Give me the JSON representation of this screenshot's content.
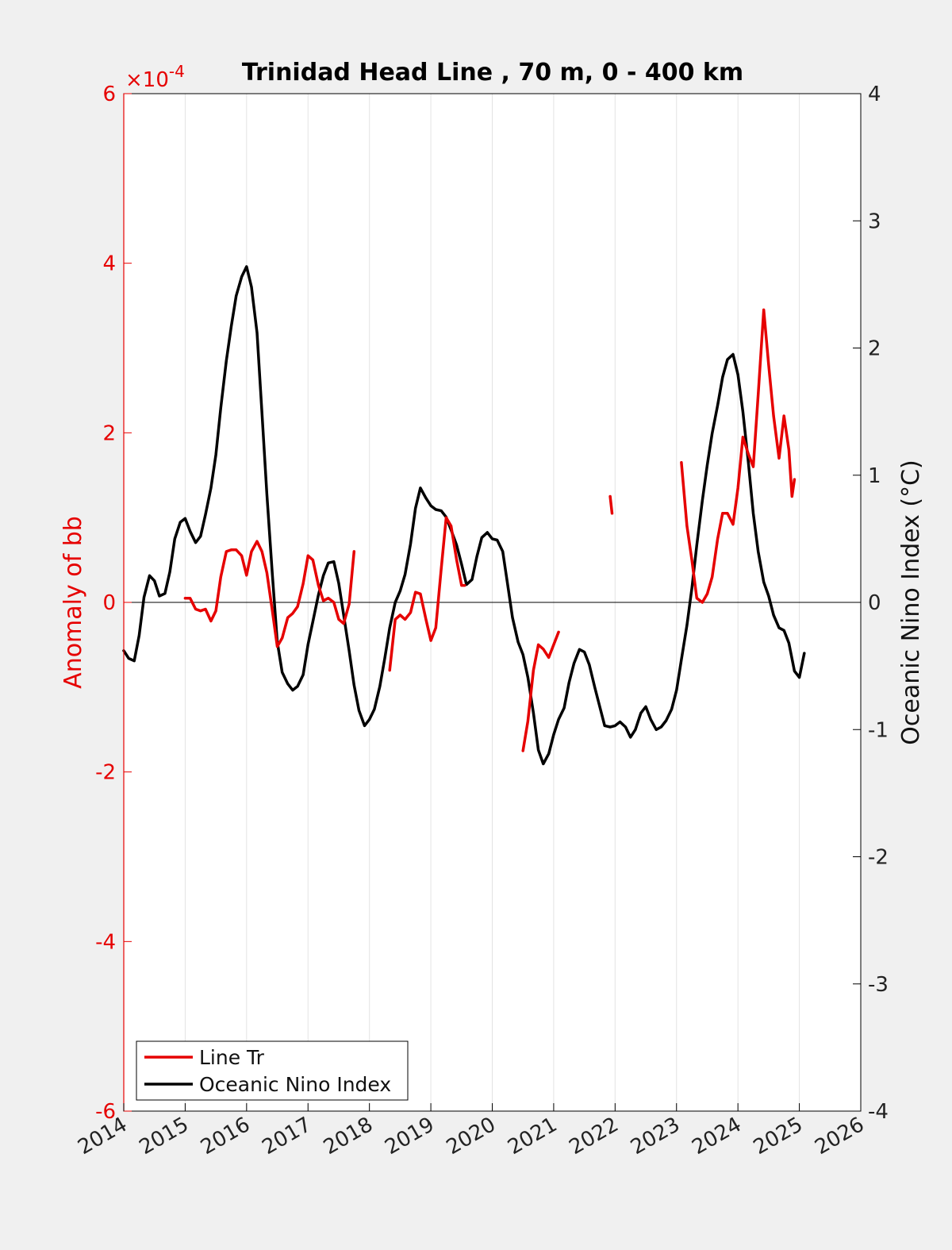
{
  "chart_data": {
    "type": "line",
    "title": "Trinidad Head Line , 70 m, 0 - 400 km",
    "xlabel": "",
    "ylabel_left": "Anomaly of bb",
    "ylabel_right": "Oceanic Nino Index (°C)",
    "left_exponent_base": "×10",
    "left_exponent_power": "-4",
    "xlim": [
      2014,
      2026
    ],
    "ylim_left": [
      -6,
      6
    ],
    "ylim_right": [
      -4,
      4
    ],
    "x_ticks": [
      2014,
      2015,
      2016,
      2017,
      2018,
      2019,
      2020,
      2021,
      2022,
      2023,
      2024,
      2025,
      2026
    ],
    "x_tick_labels": [
      "2014",
      "2015",
      "2016",
      "2017",
      "2018",
      "2019",
      "2020",
      "2021",
      "2022",
      "2023",
      "2024",
      "2025",
      "2026"
    ],
    "yticks_left": [
      -6,
      -4,
      -2,
      0,
      2,
      4,
      6
    ],
    "yticks_right": [
      -4,
      -3,
      -2,
      -1,
      0,
      1,
      2,
      3,
      4
    ],
    "grid": "vertical",
    "legend_placement": "bottom-left",
    "colors": {
      "line_tr": "#e60000",
      "oni": "#000000"
    },
    "series": [
      {
        "name": "Line Tr",
        "axis": "left",
        "segments": [
          [
            [
              2015.0,
              0.05
            ],
            [
              2015.08,
              0.05
            ],
            [
              2015.17,
              -0.08
            ],
            [
              2015.25,
              -0.1
            ],
            [
              2015.33,
              -0.08
            ],
            [
              2015.42,
              -0.22
            ],
            [
              2015.5,
              -0.1
            ],
            [
              2015.58,
              0.3
            ],
            [
              2015.67,
              0.6
            ],
            [
              2015.75,
              0.62
            ],
            [
              2015.83,
              0.62
            ],
            [
              2015.92,
              0.55
            ],
            [
              2016.0,
              0.32
            ],
            [
              2016.08,
              0.6
            ],
            [
              2016.17,
              0.72
            ],
            [
              2016.25,
              0.6
            ],
            [
              2016.33,
              0.35
            ],
            [
              2016.42,
              -0.1
            ],
            [
              2016.5,
              -0.52
            ],
            [
              2016.58,
              -0.42
            ],
            [
              2016.67,
              -0.18
            ],
            [
              2016.75,
              -0.13
            ],
            [
              2016.83,
              -0.05
            ],
            [
              2016.92,
              0.22
            ],
            [
              2017.0,
              0.55
            ],
            [
              2017.08,
              0.5
            ],
            [
              2017.17,
              0.2
            ],
            [
              2017.25,
              0.02
            ],
            [
              2017.33,
              0.05
            ],
            [
              2017.42,
              0.0
            ],
            [
              2017.5,
              -0.2
            ],
            [
              2017.58,
              -0.25
            ],
            [
              2017.67,
              -0.02
            ],
            [
              2017.75,
              0.6
            ]
          ],
          [
            [
              2018.33,
              -0.8
            ],
            [
              2018.42,
              -0.2
            ],
            [
              2018.5,
              -0.15
            ],
            [
              2018.58,
              -0.2
            ],
            [
              2018.67,
              -0.12
            ],
            [
              2018.75,
              0.12
            ],
            [
              2018.83,
              0.1
            ],
            [
              2018.92,
              -0.2
            ],
            [
              2019.0,
              -0.45
            ],
            [
              2019.08,
              -0.3
            ],
            [
              2019.17,
              0.4
            ],
            [
              2019.25,
              1.0
            ],
            [
              2019.33,
              0.9
            ],
            [
              2019.42,
              0.5
            ],
            [
              2019.5,
              0.2
            ],
            [
              2019.55,
              0.2
            ]
          ],
          [
            [
              2020.5,
              -1.75
            ],
            [
              2020.58,
              -1.4
            ],
            [
              2020.67,
              -0.8
            ],
            [
              2020.75,
              -0.5
            ],
            [
              2020.83,
              -0.55
            ],
            [
              2020.92,
              -0.65
            ],
            [
              2021.0,
              -0.5
            ],
            [
              2021.08,
              -0.35
            ]
          ],
          [
            [
              2021.92,
              1.25
            ],
            [
              2021.95,
              1.05
            ]
          ],
          [
            [
              2023.08,
              1.65
            ],
            [
              2023.17,
              0.9
            ],
            [
              2023.25,
              0.5
            ],
            [
              2023.33,
              0.05
            ],
            [
              2023.42,
              0.0
            ],
            [
              2023.5,
              0.1
            ],
            [
              2023.58,
              0.3
            ],
            [
              2023.67,
              0.75
            ],
            [
              2023.75,
              1.05
            ],
            [
              2023.83,
              1.05
            ],
            [
              2023.92,
              0.92
            ],
            [
              2024.0,
              1.35
            ],
            [
              2024.08,
              1.95
            ],
            [
              2024.17,
              1.75
            ],
            [
              2024.25,
              1.6
            ],
            [
              2024.33,
              2.45
            ],
            [
              2024.42,
              3.45
            ],
            [
              2024.5,
              2.8
            ],
            [
              2024.58,
              2.2
            ],
            [
              2024.67,
              1.7
            ],
            [
              2024.75,
              2.2
            ],
            [
              2024.83,
              1.8
            ],
            [
              2024.88,
              1.25
            ],
            [
              2024.92,
              1.45
            ]
          ]
        ]
      },
      {
        "name": "Oceanic Nino Index",
        "axis": "right",
        "segments": [
          [
            [
              2014.0,
              -0.38
            ],
            [
              2014.08,
              -0.44
            ],
            [
              2014.17,
              -0.46
            ],
            [
              2014.25,
              -0.26
            ],
            [
              2014.33,
              0.04
            ],
            [
              2014.42,
              0.21
            ],
            [
              2014.5,
              0.17
            ],
            [
              2014.58,
              0.05
            ],
            [
              2014.67,
              0.07
            ],
            [
              2014.75,
              0.24
            ],
            [
              2014.83,
              0.5
            ],
            [
              2014.92,
              0.63
            ],
            [
              2015.0,
              0.66
            ],
            [
              2015.08,
              0.56
            ],
            [
              2015.17,
              0.47
            ],
            [
              2015.25,
              0.52
            ],
            [
              2015.33,
              0.69
            ],
            [
              2015.42,
              0.9
            ],
            [
              2015.5,
              1.16
            ],
            [
              2015.58,
              1.53
            ],
            [
              2015.67,
              1.9
            ],
            [
              2015.75,
              2.17
            ],
            [
              2015.83,
              2.41
            ],
            [
              2015.92,
              2.56
            ],
            [
              2016.0,
              2.64
            ],
            [
              2016.08,
              2.48
            ],
            [
              2016.17,
              2.12
            ],
            [
              2016.25,
              1.49
            ],
            [
              2016.33,
              0.85
            ],
            [
              2016.42,
              0.22
            ],
            [
              2016.5,
              -0.31
            ],
            [
              2016.58,
              -0.55
            ],
            [
              2016.67,
              -0.64
            ],
            [
              2016.75,
              -0.69
            ],
            [
              2016.83,
              -0.66
            ],
            [
              2016.92,
              -0.57
            ],
            [
              2017.0,
              -0.33
            ],
            [
              2017.08,
              -0.15
            ],
            [
              2017.17,
              0.06
            ],
            [
              2017.25,
              0.21
            ],
            [
              2017.33,
              0.31
            ],
            [
              2017.42,
              0.32
            ],
            [
              2017.5,
              0.15
            ],
            [
              2017.58,
              -0.1
            ],
            [
              2017.67,
              -0.38
            ],
            [
              2017.75,
              -0.65
            ],
            [
              2017.83,
              -0.85
            ],
            [
              2017.92,
              -0.97
            ],
            [
              2018.0,
              -0.92
            ],
            [
              2018.08,
              -0.84
            ],
            [
              2018.17,
              -0.66
            ],
            [
              2018.25,
              -0.44
            ],
            [
              2018.33,
              -0.2
            ],
            [
              2018.42,
              0.0
            ],
            [
              2018.5,
              0.09
            ],
            [
              2018.58,
              0.22
            ],
            [
              2018.67,
              0.46
            ],
            [
              2018.75,
              0.74
            ],
            [
              2018.83,
              0.9
            ],
            [
              2018.92,
              0.82
            ],
            [
              2019.0,
              0.76
            ],
            [
              2019.08,
              0.73
            ],
            [
              2019.17,
              0.72
            ],
            [
              2019.25,
              0.67
            ],
            [
              2019.33,
              0.57
            ],
            [
              2019.42,
              0.45
            ],
            [
              2019.5,
              0.3
            ],
            [
              2019.58,
              0.14
            ],
            [
              2019.67,
              0.18
            ],
            [
              2019.75,
              0.36
            ],
            [
              2019.83,
              0.51
            ],
            [
              2019.92,
              0.55
            ],
            [
              2020.0,
              0.5
            ],
            [
              2020.08,
              0.49
            ],
            [
              2020.17,
              0.4
            ],
            [
              2020.25,
              0.14
            ],
            [
              2020.33,
              -0.12
            ],
            [
              2020.42,
              -0.31
            ],
            [
              2020.5,
              -0.41
            ],
            [
              2020.58,
              -0.59
            ],
            [
              2020.67,
              -0.87
            ],
            [
              2020.75,
              -1.16
            ],
            [
              2020.83,
              -1.27
            ],
            [
              2020.92,
              -1.19
            ],
            [
              2021.0,
              -1.04
            ],
            [
              2021.08,
              -0.92
            ],
            [
              2021.17,
              -0.83
            ],
            [
              2021.25,
              -0.63
            ],
            [
              2021.33,
              -0.48
            ],
            [
              2021.42,
              -0.37
            ],
            [
              2021.5,
              -0.39
            ],
            [
              2021.58,
              -0.49
            ],
            [
              2021.67,
              -0.67
            ],
            [
              2021.75,
              -0.82
            ],
            [
              2021.83,
              -0.97
            ],
            [
              2021.92,
              -0.98
            ],
            [
              2022.0,
              -0.97
            ],
            [
              2022.08,
              -0.94
            ],
            [
              2022.17,
              -0.98
            ],
            [
              2022.25,
              -1.06
            ],
            [
              2022.33,
              -1.0
            ],
            [
              2022.42,
              -0.87
            ],
            [
              2022.5,
              -0.82
            ],
            [
              2022.58,
              -0.92
            ],
            [
              2022.67,
              -1.0
            ],
            [
              2022.75,
              -0.98
            ],
            [
              2022.83,
              -0.93
            ],
            [
              2022.92,
              -0.84
            ],
            [
              2023.0,
              -0.69
            ],
            [
              2023.08,
              -0.45
            ],
            [
              2023.17,
              -0.18
            ],
            [
              2023.25,
              0.11
            ],
            [
              2023.33,
              0.45
            ],
            [
              2023.42,
              0.8
            ],
            [
              2023.5,
              1.08
            ],
            [
              2023.58,
              1.33
            ],
            [
              2023.67,
              1.55
            ],
            [
              2023.75,
              1.77
            ],
            [
              2023.83,
              1.91
            ],
            [
              2023.92,
              1.95
            ],
            [
              2024.0,
              1.79
            ],
            [
              2024.08,
              1.5
            ],
            [
              2024.17,
              1.1
            ],
            [
              2024.25,
              0.7
            ],
            [
              2024.33,
              0.4
            ],
            [
              2024.42,
              0.16
            ],
            [
              2024.5,
              0.05
            ],
            [
              2024.58,
              -0.1
            ],
            [
              2024.67,
              -0.2
            ],
            [
              2024.75,
              -0.22
            ],
            [
              2024.83,
              -0.32
            ],
            [
              2024.92,
              -0.54
            ],
            [
              2025.0,
              -0.59
            ],
            [
              2025.08,
              -0.4
            ]
          ]
        ]
      }
    ]
  }
}
